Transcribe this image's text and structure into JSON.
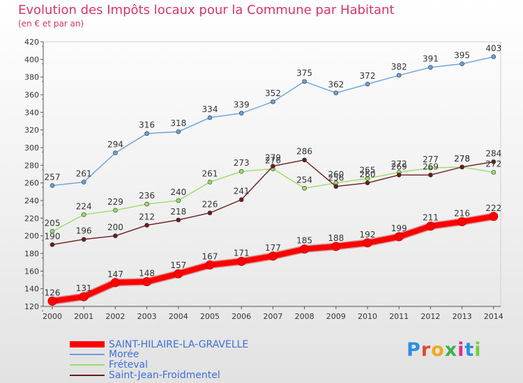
{
  "chart_data": {
    "type": "line",
    "title": "Evolution des Impôts locaux pour la Commune par Habitant",
    "subtitle": "(en € et par an)",
    "categories": [
      "2000",
      "2001",
      "2002",
      "2003",
      "2004",
      "2005",
      "2006",
      "2007",
      "2008",
      "2009",
      "2010",
      "2011",
      "2012",
      "2013",
      "2014"
    ],
    "ylim": [
      120,
      420
    ],
    "yticks": [
      120,
      140,
      160,
      180,
      200,
      220,
      240,
      260,
      280,
      300,
      320,
      340,
      360,
      380,
      400,
      420
    ],
    "grid": false,
    "legend_position": "bottom-left",
    "series": [
      {
        "name": "SAINT-HILAIRE-LA-GRAVELLE",
        "color": "#ff0000",
        "values": [
          126,
          131,
          147,
          148,
          157,
          167,
          171,
          177,
          185,
          188,
          192,
          199,
          211,
          216,
          222
        ]
      },
      {
        "name": "Morée",
        "color": "#6aa0d8",
        "values": [
          257,
          261,
          294,
          316,
          318,
          334,
          339,
          352,
          375,
          362,
          372,
          382,
          391,
          395,
          403
        ]
      },
      {
        "name": "Fréteval",
        "color": "#99dd66",
        "values": [
          205,
          224,
          229,
          236,
          240,
          261,
          273,
          276,
          254,
          260,
          265,
          272,
          277,
          278,
          272
        ]
      },
      {
        "name": "Saint-Jean-Froidmentel",
        "color": "#6b1c1c",
        "values": [
          190,
          196,
          200,
          212,
          218,
          226,
          241,
          279,
          286,
          256,
          260,
          269,
          269,
          278,
          284
        ]
      }
    ]
  },
  "brand": {
    "letters": [
      "P",
      "r",
      "o",
      "x",
      "i",
      "t",
      "i"
    ],
    "colors": [
      "#2d8fe0",
      "#e04a2d",
      "#f2a81d",
      "#3fb14a",
      "#e02d8c",
      "#2d8fe0",
      "#7ac943"
    ]
  }
}
